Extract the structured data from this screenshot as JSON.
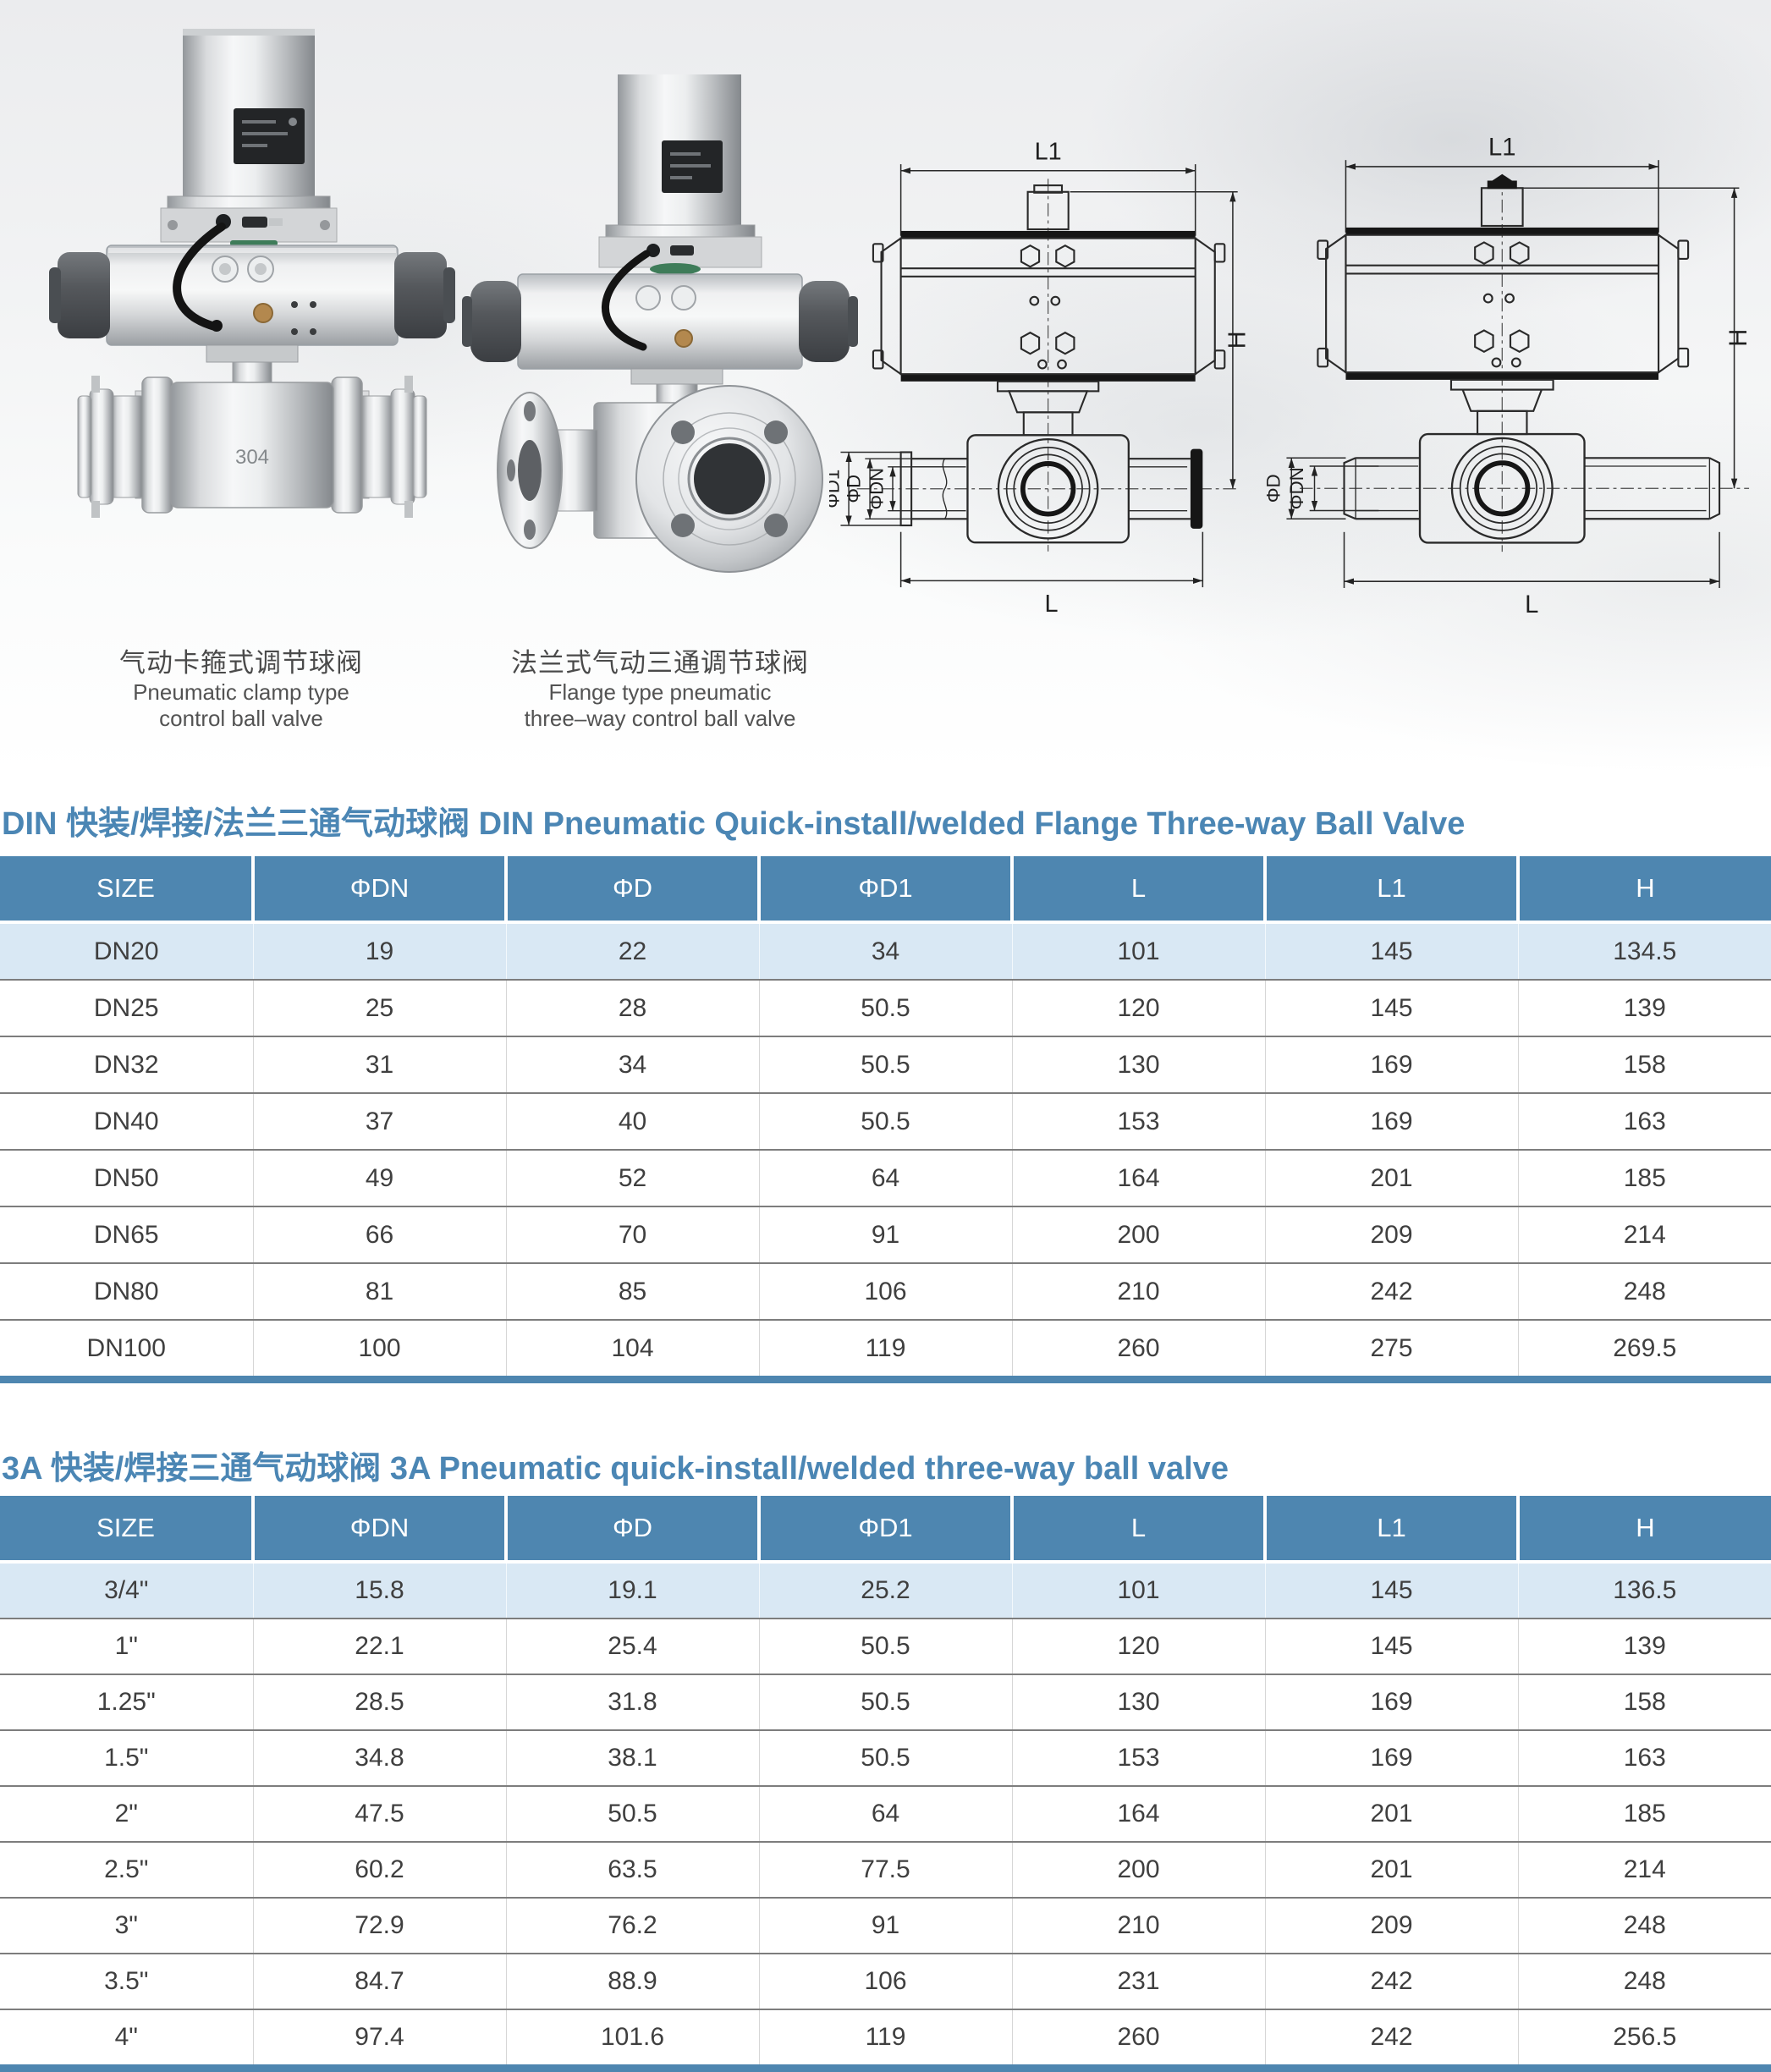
{
  "page": {
    "accent_blue": "#4e86b0",
    "title_color": "#4b86b4",
    "row_highlight": "#d9e8f4",
    "background": "#ffffff"
  },
  "hero": {
    "photos": [
      {
        "caption_zh": "气动卡箍式调节球阀",
        "caption_en": [
          "Pneumatic clamp type",
          "control ball valve"
        ],
        "body_mark": "304"
      },
      {
        "caption_zh": "法兰式气动三通调节球阀",
        "caption_en": [
          "Flange type pneumatic",
          "three–way control ball valve"
        ]
      }
    ],
    "drawings": [
      {
        "dim_top": "L1",
        "dim_right": "H",
        "dim_bottom": "L",
        "dim_left": [
          "ΦD1",
          "ΦD",
          "ΦDN"
        ]
      },
      {
        "dim_top": "L1",
        "dim_right": "H",
        "dim_bottom": "L",
        "dim_left": [
          "ΦD",
          "ΦDN"
        ]
      }
    ]
  },
  "tables": [
    {
      "title": "DIN 快装/焊接/法兰三通气动球阀 DIN Pneumatic Quick-install/welded Flange Three-way Ball Valve",
      "columns": [
        "SIZE",
        "ΦDN",
        "ΦD",
        "ΦD1",
        "L",
        "L1",
        "H"
      ],
      "rows": [
        [
          "DN20",
          "19",
          "22",
          "34",
          "101",
          "145",
          "134.5"
        ],
        [
          "DN25",
          "25",
          "28",
          "50.5",
          "120",
          "145",
          "139"
        ],
        [
          "DN32",
          "31",
          "34",
          "50.5",
          "130",
          "169",
          "158"
        ],
        [
          "DN40",
          "37",
          "40",
          "50.5",
          "153",
          "169",
          "163"
        ],
        [
          "DN50",
          "49",
          "52",
          "64",
          "164",
          "201",
          "185"
        ],
        [
          "DN65",
          "66",
          "70",
          "91",
          "200",
          "209",
          "214"
        ],
        [
          "DN80",
          "81",
          "85",
          "106",
          "210",
          "242",
          "248"
        ],
        [
          "DN100",
          "100",
          "104",
          "119",
          "260",
          "275",
          "269.5"
        ]
      ]
    },
    {
      "title": "3A 快装/焊接三通气动球阀 3A Pneumatic quick-install/welded three-way ball valve",
      "columns": [
        "SIZE",
        "ΦDN",
        "ΦD",
        "ΦD1",
        "L",
        "L1",
        "H"
      ],
      "rows": [
        [
          "3/4\"",
          "15.8",
          "19.1",
          "25.2",
          "101",
          "145",
          "136.5"
        ],
        [
          "1\"",
          "22.1",
          "25.4",
          "50.5",
          "120",
          "145",
          "139"
        ],
        [
          "1.25\"",
          "28.5",
          "31.8",
          "50.5",
          "130",
          "169",
          "158"
        ],
        [
          "1.5\"",
          "34.8",
          "38.1",
          "50.5",
          "153",
          "169",
          "163"
        ],
        [
          "2\"",
          "47.5",
          "50.5",
          "64",
          "164",
          "201",
          "185"
        ],
        [
          "2.5\"",
          "60.2",
          "63.5",
          "77.5",
          "200",
          "201",
          "214"
        ],
        [
          "3\"",
          "72.9",
          "76.2",
          "91",
          "210",
          "209",
          "248"
        ],
        [
          "3.5\"",
          "84.7",
          "88.9",
          "106",
          "231",
          "242",
          "248"
        ],
        [
          "4\"",
          "97.4",
          "101.6",
          "119",
          "260",
          "242",
          "256.5"
        ]
      ]
    }
  ]
}
